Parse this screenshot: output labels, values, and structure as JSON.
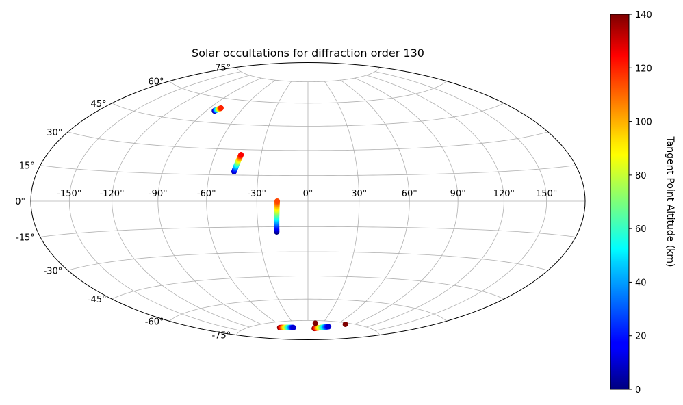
{
  "chart_data": {
    "type": "scatter",
    "projection": "hammer",
    "title": "Solar occultations for diffraction order 130",
    "grid": true,
    "x_ticks": [
      "-150°",
      "-120°",
      "-90°",
      "-60°",
      "-30°",
      "0°",
      "30°",
      "60°",
      "90°",
      "120°",
      "150°"
    ],
    "y_ticks": [
      "-75°",
      "-60°",
      "-45°",
      "-30°",
      "-15°",
      "0°",
      "15°",
      "30°",
      "45°",
      "60°",
      "75°"
    ],
    "colorbar": {
      "label": "Tangent Point Altitude (km)",
      "colormap": "jet",
      "range": [
        0,
        140
      ],
      "ticks": [
        "0",
        "20",
        "40",
        "60",
        "80",
        "100",
        "120",
        "140"
      ]
    },
    "series": [
      {
        "lon_start": -83,
        "lat_start": 52,
        "lon_end": -80,
        "lat_end": 54,
        "alt_start": 0,
        "alt_end": 120
      },
      {
        "lon_start": -45,
        "lat_start": 17,
        "lon_end": -43,
        "lat_end": 27,
        "alt_start": 5,
        "alt_end": 125
      },
      {
        "lon_start": -19,
        "lat_start": -18,
        "lon_end": -18,
        "lat_end": 0,
        "alt_start": 0,
        "alt_end": 115
      },
      {
        "lon_start": -70,
        "lat_start": -79,
        "lon_end": -38,
        "lat_end": -80,
        "alt_start": 140,
        "alt_end": 10
      },
      {
        "lon_start": 18,
        "lat_start": -81,
        "lon_end": 50,
        "lat_end": -79,
        "alt_start": 140,
        "alt_end": 10
      },
      {
        "lon_start": 15,
        "lat_start": -77,
        "lon_end": 15,
        "lat_end": -77,
        "alt_start": 140,
        "alt_end": 140
      },
      {
        "lon_start": 75,
        "lat_start": -76,
        "lon_end": 75,
        "lat_end": -76,
        "alt_start": 140,
        "alt_end": 140
      }
    ]
  }
}
